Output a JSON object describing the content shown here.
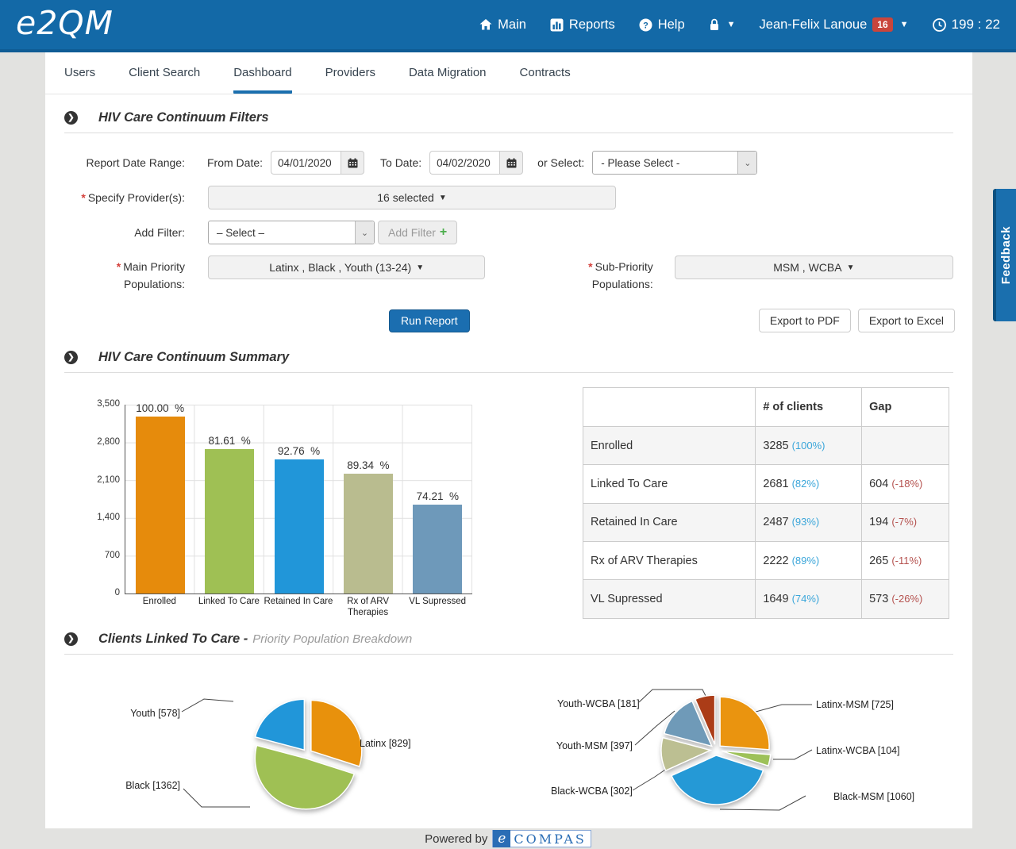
{
  "navbar": {
    "brand": "e2QM",
    "main_label": "Main",
    "reports_label": "Reports",
    "help_label": "Help",
    "user_name": "Jean-Felix Lanoue",
    "user_badge": "16",
    "session_timer": "199 : 22"
  },
  "tabs": {
    "users": "Users",
    "client_search": "Client Search",
    "dashboard": "Dashboard",
    "providers": "Providers",
    "data_migration": "Data Migration",
    "contracts": "Contracts"
  },
  "filters": {
    "section_title": "HIV Care Continuum Filters",
    "report_date_range_label": "Report Date Range:",
    "from_date_label": "From Date:",
    "from_date_value": "04/01/2020",
    "to_date_label": "To Date:",
    "to_date_value": "04/02/2020",
    "or_select_label": "or Select:",
    "or_select_value": "- Please Select -",
    "specify_providers_label": "Specify Provider(s):",
    "providers_selected": "16 selected",
    "add_filter_label": "Add Filter:",
    "add_filter_select_value": "– Select –",
    "add_filter_button": "Add Filter",
    "main_priority_label_1": "Main Priority",
    "main_priority_label_2": "Populations:",
    "main_priority_value": "Latinx , Black , Youth (13-24)",
    "sub_priority_label_1": "Sub-Priority",
    "sub_priority_label_2": "Populations:",
    "sub_priority_value": "MSM , WCBA",
    "run_report": "Run Report",
    "export_pdf": "Export to PDF",
    "export_excel": "Export to Excel"
  },
  "summary": {
    "section_title": "HIV Care Continuum Summary"
  },
  "chart_data": [
    {
      "type": "bar",
      "title": "HIV Care Continuum Summary",
      "categories": [
        "Enrolled",
        "Linked To Care",
        "Retained In Care",
        "Rx of ARV Therapies",
        "VL Supressed"
      ],
      "values": [
        3285,
        2681,
        2487,
        2222,
        1649
      ],
      "pct_labels": [
        "100.00  %",
        "81.61  %",
        "92.76  %",
        "89.34  %",
        "74.21  %"
      ],
      "colors": [
        "#e68b0c",
        "#9fc054",
        "#2196d9",
        "#b9bc8f",
        "#6e99ba"
      ],
      "ylim": [
        0,
        3500
      ],
      "yticks": [
        "3,500",
        "2,800",
        "2,100",
        "1,400",
        "700",
        "0"
      ],
      "grid": true,
      "xlabel": "",
      "ylabel": ""
    },
    {
      "type": "pie",
      "title": "Clients Linked To Care - Main Priority Population Breakdown",
      "labels": [
        "Latinx [829]",
        "Black [1362]",
        "Youth [578]"
      ],
      "values": [
        829,
        1362,
        578
      ],
      "colors": [
        "#e8910c",
        "#9fc054",
        "#2196d9"
      ]
    },
    {
      "type": "pie",
      "title": "Clients Linked To Care - Sub-Priority Population Breakdown",
      "labels": [
        "Latinx-MSM [725]",
        "Latinx-WCBA [104]",
        "Black-MSM [1060]",
        "Black-WCBA [302]",
        "Youth-MSM [397]",
        "Youth-WCBA [181]"
      ],
      "values": [
        725,
        104,
        1060,
        302,
        397,
        181
      ],
      "colors": [
        "#ea940f",
        "#9dc159",
        "#2599d6",
        "#bcbf92",
        "#6f9ab8",
        "#ab3c17"
      ]
    }
  ],
  "summary_table": {
    "headers": [
      "",
      "# of clients",
      "Gap"
    ],
    "rows": [
      {
        "label": "Enrolled",
        "clients": "3285",
        "clients_pct": "(100%)",
        "gap": "",
        "gap_pct": ""
      },
      {
        "label": "Linked To Care",
        "clients": "2681",
        "clients_pct": "(82%)",
        "gap": "604",
        "gap_pct": "(-18%)"
      },
      {
        "label": "Retained In Care",
        "clients": "2487",
        "clients_pct": "(93%)",
        "gap": "194",
        "gap_pct": "(-7%)"
      },
      {
        "label": "Rx of ARV Therapies",
        "clients": "2222",
        "clients_pct": "(89%)",
        "gap": "265",
        "gap_pct": "(-11%)"
      },
      {
        "label": "VL Supressed",
        "clients": "1649",
        "clients_pct": "(74%)",
        "gap": "573",
        "gap_pct": "(-26%)"
      }
    ]
  },
  "linked_section": {
    "title": "Clients Linked To Care -",
    "subtitle": "Priority Population Breakdown"
  },
  "footer": {
    "powered_by": "Powered by",
    "logo_e": "e",
    "logo_text": "COMPAS"
  },
  "feedback_label": "Feedback"
}
